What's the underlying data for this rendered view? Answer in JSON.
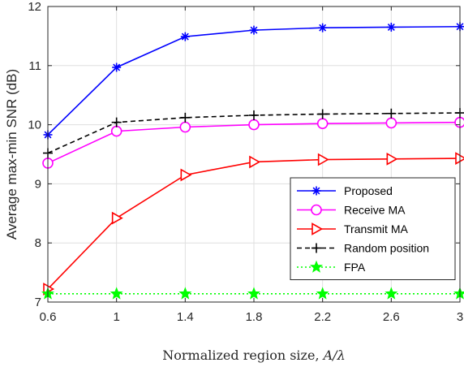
{
  "chart_data": {
    "type": "line",
    "xlabel": "Normalized region size, A/λ",
    "xlabel_parts": {
      "prefix": "Normalized region size, ",
      "variable": "A/λ"
    },
    "ylabel": "Average max-min SNR (dB)",
    "x": [
      0.6,
      1,
      1.4,
      1.8,
      2.2,
      2.6,
      3
    ],
    "x_tick_labels": [
      "0.6",
      "1",
      "1.4",
      "1.8",
      "2.2",
      "2.6",
      "3"
    ],
    "xlim": [
      0.6,
      3
    ],
    "ylim": [
      7,
      12
    ],
    "y_ticks": [
      7,
      8,
      9,
      10,
      11,
      12
    ],
    "y_tick_labels": [
      "7",
      "8",
      "9",
      "10",
      "11",
      "12"
    ],
    "grid": true,
    "legend_position": "right",
    "series": [
      {
        "name": "Proposed",
        "values": [
          9.83,
          10.97,
          11.49,
          11.6,
          11.64,
          11.65,
          11.66
        ],
        "color": "#0000ff",
        "line_style": "solid",
        "marker": "asterisk"
      },
      {
        "name": "Receive MA",
        "values": [
          9.35,
          9.89,
          9.96,
          10.0,
          10.02,
          10.03,
          10.04
        ],
        "color": "#ff00ff",
        "line_style": "solid",
        "marker": "circle"
      },
      {
        "name": "Transmit MA",
        "values": [
          7.22,
          8.42,
          9.15,
          9.37,
          9.41,
          9.42,
          9.43
        ],
        "color": "#ff0000",
        "line_style": "solid",
        "marker": "triangle-right"
      },
      {
        "name": "Random position",
        "values": [
          9.52,
          10.04,
          10.12,
          10.16,
          10.18,
          10.19,
          10.2
        ],
        "color": "#000000",
        "line_style": "dashed",
        "marker": "plus"
      },
      {
        "name": "FPA",
        "values": [
          7.14,
          7.14,
          7.14,
          7.14,
          7.14,
          7.14,
          7.14
        ],
        "color": "#00ff00",
        "line_style": "dotted",
        "marker": "star"
      }
    ]
  }
}
